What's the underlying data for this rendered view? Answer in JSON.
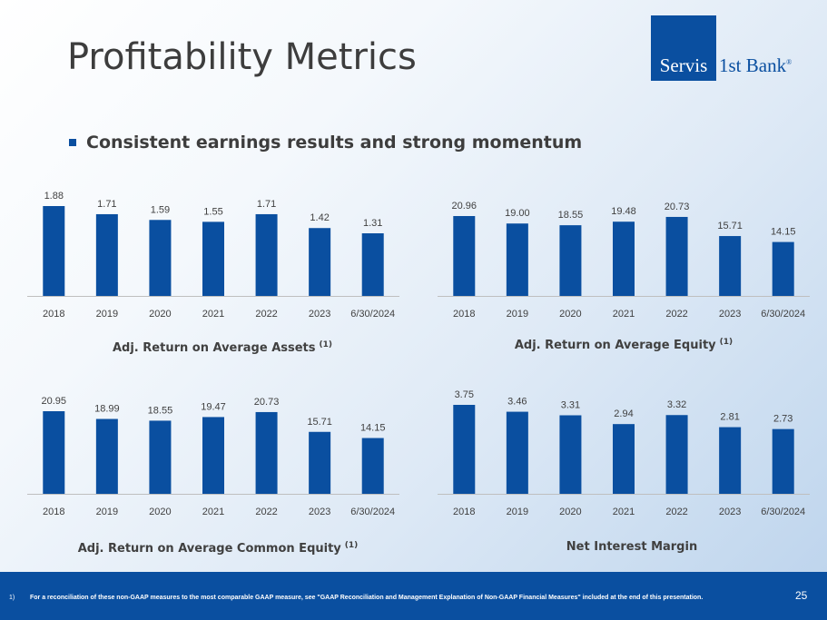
{
  "title": "Profitability Metrics",
  "logo": {
    "boxed": "Servis",
    "rest": "1st Bank",
    "mark": "®",
    "brand_color": "#0a4fa0"
  },
  "bullet": "Consistent earnings results and strong momentum",
  "footnote": {
    "num": "1)",
    "text": "For a reconciliation of these non-GAAP measures to the most comparable GAAP measure, see \"GAAP Reconciliation and Management Explanation of Non-GAAP Financial Measures\" included at the end of this presentation."
  },
  "page_number": "25",
  "colors": {
    "bar": "#0a4fa0",
    "axis": "#bfbfbf"
  },
  "chart_data": [
    {
      "type": "bar",
      "title": "Adj. Return on Average Assets",
      "footnote_ref": "(1)",
      "categories": [
        "2018",
        "2019",
        "2020",
        "2021",
        "2022",
        "2023",
        "6/30/2024"
      ],
      "values": [
        1.88,
        1.71,
        1.59,
        1.55,
        1.71,
        1.42,
        1.31
      ],
      "labels": [
        "1.88",
        "1.71",
        "1.59",
        "1.55",
        "1.71",
        "1.42",
        "1.31"
      ]
    },
    {
      "type": "bar",
      "title": "Adj. Return on Average Equity",
      "footnote_ref": "(1)",
      "categories": [
        "2018",
        "2019",
        "2020",
        "2021",
        "2022",
        "2023",
        "6/30/2024"
      ],
      "values": [
        20.96,
        19.0,
        18.55,
        19.48,
        20.73,
        15.71,
        14.15
      ],
      "labels": [
        "20.96",
        "19.00",
        "18.55",
        "19.48",
        "20.73",
        "15.71",
        "14.15"
      ]
    },
    {
      "type": "bar",
      "title": "Adj. Return on Average Common Equity",
      "footnote_ref": "(1)",
      "categories": [
        "2018",
        "2019",
        "2020",
        "2021",
        "2022",
        "2023",
        "6/30/2024"
      ],
      "values": [
        20.95,
        18.99,
        18.55,
        19.47,
        20.73,
        15.71,
        14.15
      ],
      "labels": [
        "20.95",
        "18.99",
        "18.55",
        "19.47",
        "20.73",
        "15.71",
        "14.15"
      ]
    },
    {
      "type": "bar",
      "title": "Net Interest Margin",
      "footnote_ref": "",
      "categories": [
        "2018",
        "2019",
        "2020",
        "2021",
        "2022",
        "2023",
        "6/30/2024"
      ],
      "values": [
        3.75,
        3.46,
        3.31,
        2.94,
        3.32,
        2.81,
        2.73
      ],
      "labels": [
        "3.75",
        "3.46",
        "3.31",
        "2.94",
        "3.32",
        "2.81",
        "2.73"
      ]
    }
  ]
}
